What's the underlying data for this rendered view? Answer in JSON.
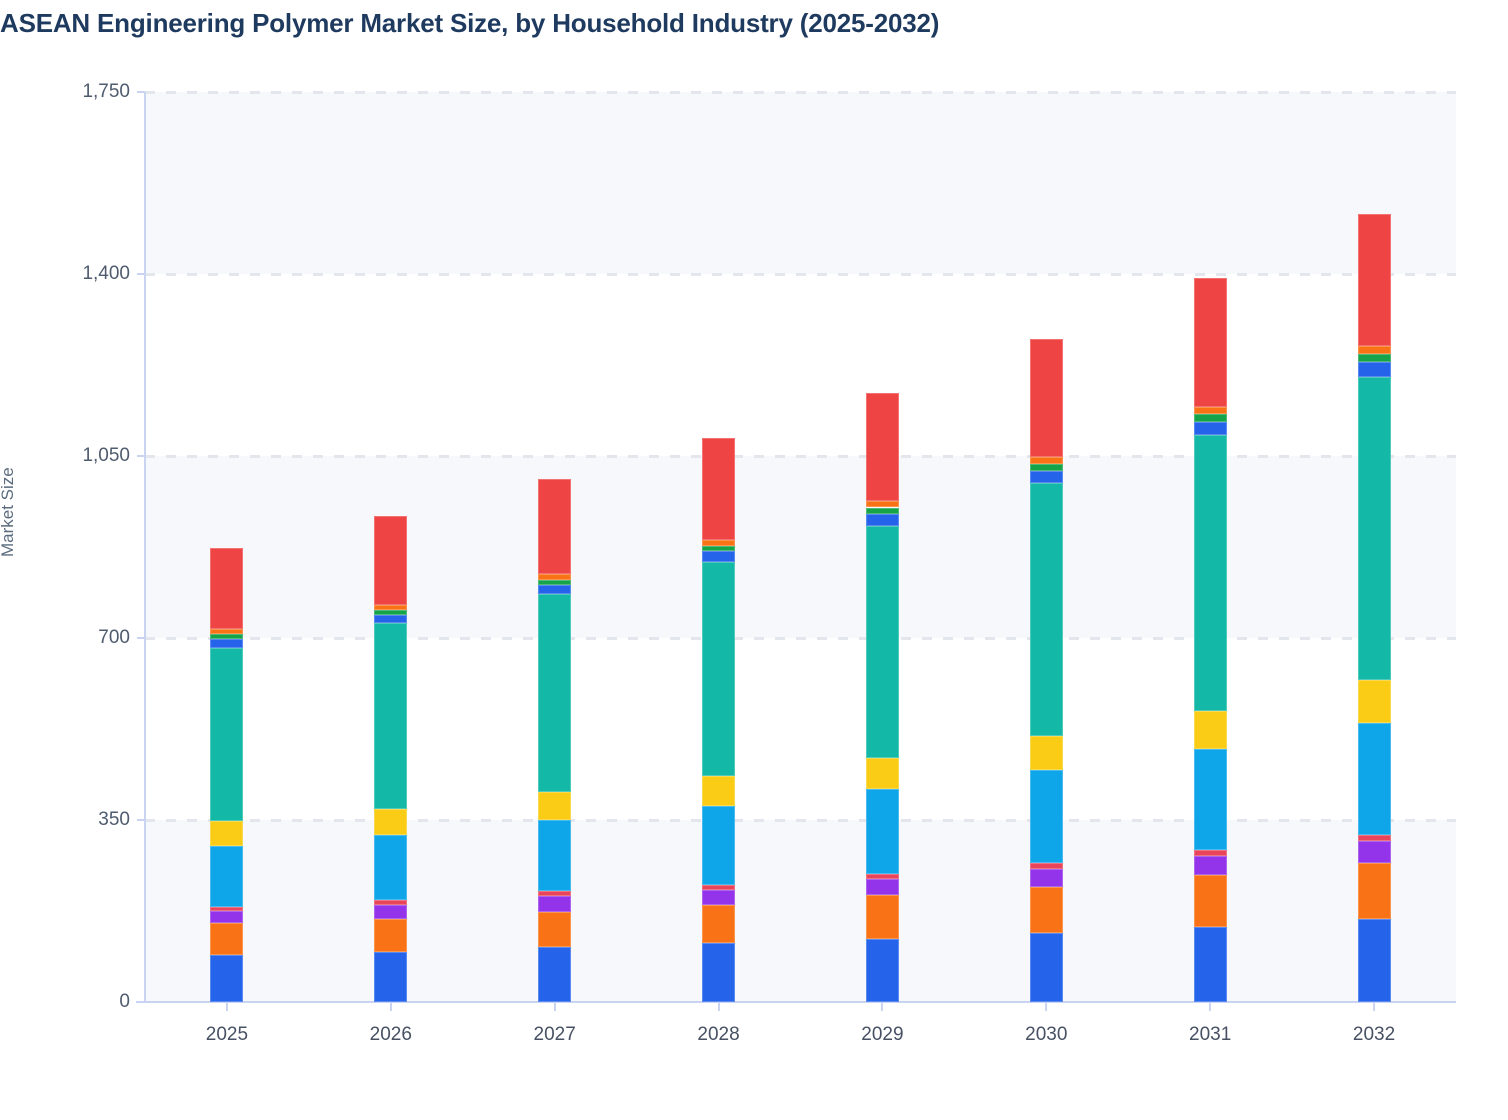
{
  "title": "ASEAN Engineering Polymer Market Size, by Household Industry (2025-2032)",
  "y_axis": {
    "label": "Market Size",
    "ticks": [
      "1,750",
      "1,400",
      "1,050",
      "700",
      "350",
      "0"
    ],
    "max": 1750,
    "step": 350
  },
  "x_axis": {
    "categories": [
      "2025",
      "2026",
      "2027",
      "2028",
      "2029",
      "2030",
      "2031",
      "2032"
    ]
  },
  "palette": {
    "band_light": "#F7F8FB",
    "gridline": "#E3E7ED",
    "axis_line": "#C9D4F2",
    "title_text": "#1E3A5F",
    "tick_text": "#4F5B6E"
  },
  "chart_data": {
    "type": "bar",
    "stacked": true,
    "title": "ASEAN Engineering Polymer Market Size, by Household Industry (2025-2032)",
    "xlabel": "",
    "ylabel": "Market Size",
    "ylim": [
      0,
      1750
    ],
    "grid": "horizontal-dashed",
    "legend": "none",
    "categories": [
      "2025",
      "2026",
      "2027",
      "2028",
      "2029",
      "2030",
      "2031",
      "2032"
    ],
    "series": [
      {
        "name": "blue",
        "color": "#2563EB",
        "values": [
          90,
          97,
          105,
          114,
          121,
          132,
          145,
          160
        ]
      },
      {
        "name": "orange",
        "color": "#F97316",
        "values": [
          62,
          63,
          68,
          73,
          85,
          89,
          100,
          108
        ]
      },
      {
        "name": "purple",
        "color": "#9333EA",
        "values": [
          23,
          27,
          31,
          29,
          30,
          34,
          35,
          42
        ]
      },
      {
        "name": "crimson",
        "color": "#E8445A",
        "values": [
          8,
          9,
          10,
          9,
          11,
          12,
          13,
          12
        ]
      },
      {
        "name": "sky-blue",
        "color": "#0EA5E9",
        "values": [
          117,
          125,
          136,
          152,
          162,
          179,
          193,
          215
        ]
      },
      {
        "name": "yellow",
        "color": "#FACC15",
        "values": [
          48,
          50,
          53,
          57,
          61,
          65,
          74,
          83
        ]
      },
      {
        "name": "teal",
        "color": "#14B8A6",
        "values": [
          333,
          357,
          381,
          412,
          446,
          487,
          531,
          582
        ]
      },
      {
        "name": "blue-thin",
        "color": "#2563EB",
        "values": [
          17,
          16,
          18,
          21,
          23,
          23,
          24,
          29
        ]
      },
      {
        "name": "green",
        "color": "#16A34A",
        "values": [
          9,
          10,
          10,
          10,
          12,
          13,
          15,
          15
        ]
      },
      {
        "name": "orange-thin",
        "color": "#F97316",
        "values": [
          10,
          10,
          11,
          11,
          12,
          14,
          15,
          15
        ]
      },
      {
        "name": "red",
        "color": "#EF4444",
        "values": [
          156,
          171,
          183,
          196,
          209,
          228,
          248,
          255
        ]
      }
    ],
    "totals": [
      873,
      935,
      1006,
      1084,
      1172,
      1276,
      1393,
      1516
    ]
  }
}
